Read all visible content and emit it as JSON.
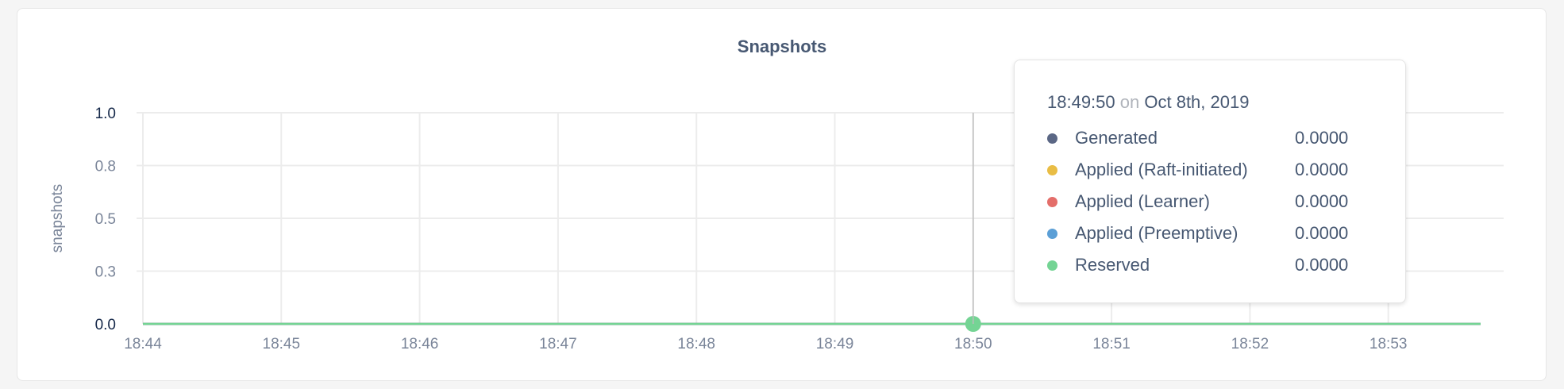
{
  "chart_data": {
    "type": "line",
    "title": "Snapshots",
    "ylabel": "snapshots",
    "xlabel": "",
    "ylim": [
      0,
      1
    ],
    "yticks": [
      0,
      0.25,
      0.5,
      0.75,
      1.0
    ],
    "ytick_labels": [
      "0.0",
      "0.3",
      "0.5",
      "0.8",
      "1.0"
    ],
    "xticks": [
      "18:44",
      "18:45",
      "18:46",
      "18:47",
      "18:48",
      "18:49",
      "18:50",
      "18:51",
      "18:52",
      "18:53"
    ],
    "xlim": [
      "18:44",
      "18:53:40"
    ],
    "grid": true,
    "series": [
      {
        "name": "Generated",
        "color": "#5b6785",
        "values": [
          0,
          0,
          0,
          0,
          0,
          0,
          0,
          0,
          0,
          0
        ]
      },
      {
        "name": "Applied (Raft-initiated)",
        "color": "#e9bd45",
        "values": [
          0,
          0,
          0,
          0,
          0,
          0,
          0,
          0,
          0,
          0
        ]
      },
      {
        "name": "Applied (Learner)",
        "color": "#e46e6a",
        "values": [
          0,
          0,
          0,
          0,
          0,
          0,
          0,
          0,
          0,
          0
        ]
      },
      {
        "name": "Applied (Preemptive)",
        "color": "#5b9fd6",
        "values": [
          0,
          0,
          0,
          0,
          0,
          0,
          0,
          0,
          0,
          0
        ]
      },
      {
        "name": "Reserved",
        "color": "#74d494",
        "values": [
          0,
          0,
          0,
          0,
          0,
          0,
          0,
          0,
          0,
          0
        ]
      }
    ]
  },
  "tooltip": {
    "time": "18:49:50",
    "on": "on",
    "date": "Oct 8th, 2019",
    "rows": [
      {
        "label": "Generated",
        "value": "0.0000",
        "color": "#5b6785"
      },
      {
        "label": "Applied (Raft-initiated)",
        "value": "0.0000",
        "color": "#e9bd45"
      },
      {
        "label": "Applied (Learner)",
        "value": "0.0000",
        "color": "#e46e6a"
      },
      {
        "label": "Applied (Preemptive)",
        "value": "0.0000",
        "color": "#5b9fd6"
      },
      {
        "label": "Reserved",
        "value": "0.0000",
        "color": "#74d494"
      }
    ]
  }
}
